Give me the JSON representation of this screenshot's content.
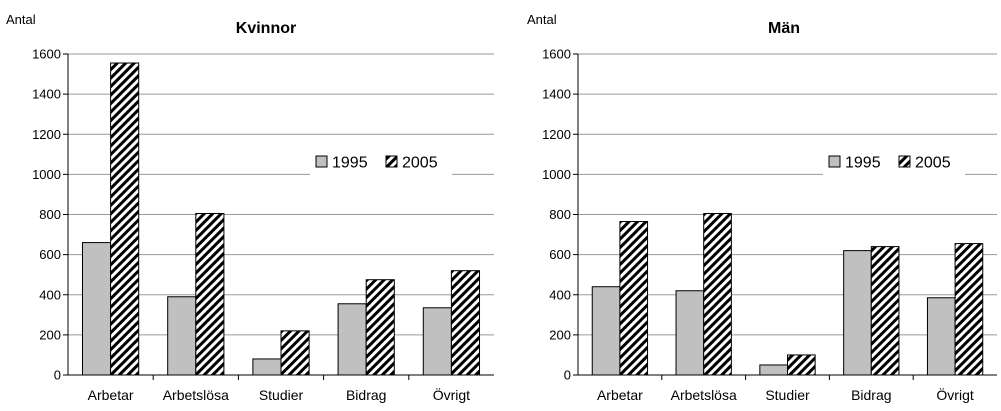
{
  "chart_data": [
    {
      "type": "bar",
      "title": "Kvinnor",
      "ylabel": "Antal",
      "xlabel": "",
      "categories": [
        "Arbetar",
        "Arbetslösa",
        "Studier",
        "Bidrag",
        "Övrigt"
      ],
      "series": [
        {
          "name": "1995",
          "values": [
            660,
            390,
            80,
            355,
            335
          ],
          "fill": "#c0c0c0",
          "pattern": "solid"
        },
        {
          "name": "2005",
          "values": [
            1555,
            805,
            220,
            475,
            520
          ],
          "fill": "#ffffff",
          "pattern": "diagonal-hatch"
        }
      ],
      "ylim": [
        0,
        1600
      ],
      "yticks": [
        0,
        200,
        400,
        600,
        800,
        1000,
        1200,
        1400,
        1600
      ],
      "grid": true,
      "legend": "right"
    },
    {
      "type": "bar",
      "title": "Män",
      "ylabel": "Antal",
      "xlabel": "",
      "categories": [
        "Arbetar",
        "Arbetslösa",
        "Studier",
        "Bidrag",
        "Övrigt"
      ],
      "series": [
        {
          "name": "1995",
          "values": [
            440,
            420,
            50,
            620,
            385
          ],
          "fill": "#c0c0c0",
          "pattern": "solid"
        },
        {
          "name": "2005",
          "values": [
            765,
            805,
            100,
            640,
            655
          ],
          "fill": "#ffffff",
          "pattern": "diagonal-hatch"
        }
      ],
      "ylim": [
        0,
        1600
      ],
      "yticks": [
        0,
        200,
        400,
        600,
        800,
        1000,
        1200,
        1400,
        1600
      ],
      "grid": true,
      "legend": "right"
    }
  ]
}
